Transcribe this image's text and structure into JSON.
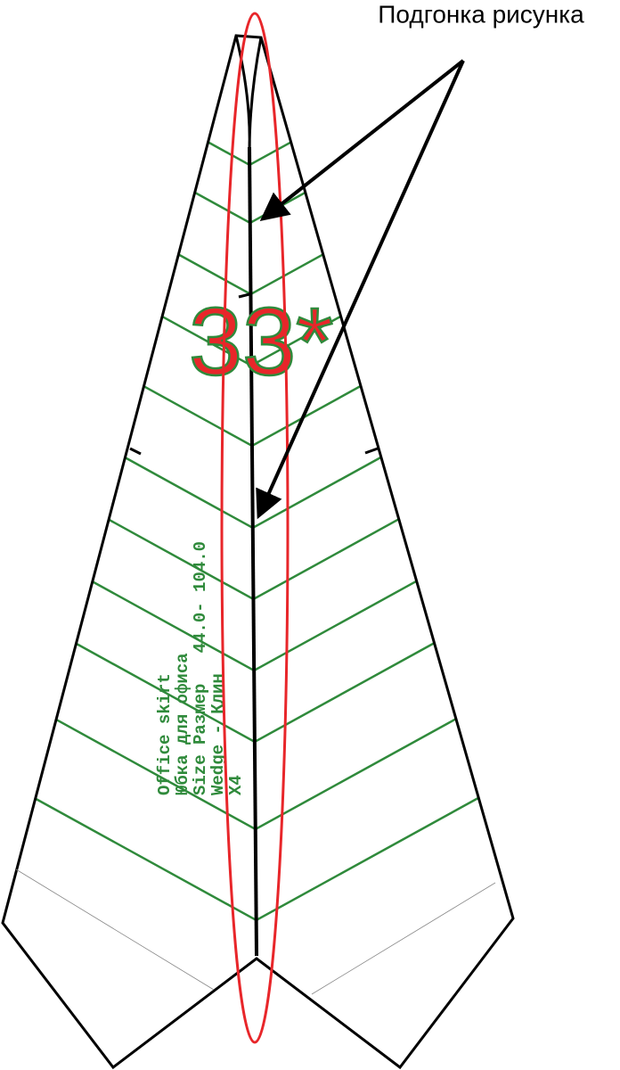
{
  "annotation": {
    "label": "Подгонка рисунка"
  },
  "pattern": {
    "mark": "33*",
    "label_lines": [
      "Office skirt",
      "Юбка для офиса",
      "Size Размер   44.0- 104.0",
      "Wedge - Клин",
      "X4"
    ]
  }
}
